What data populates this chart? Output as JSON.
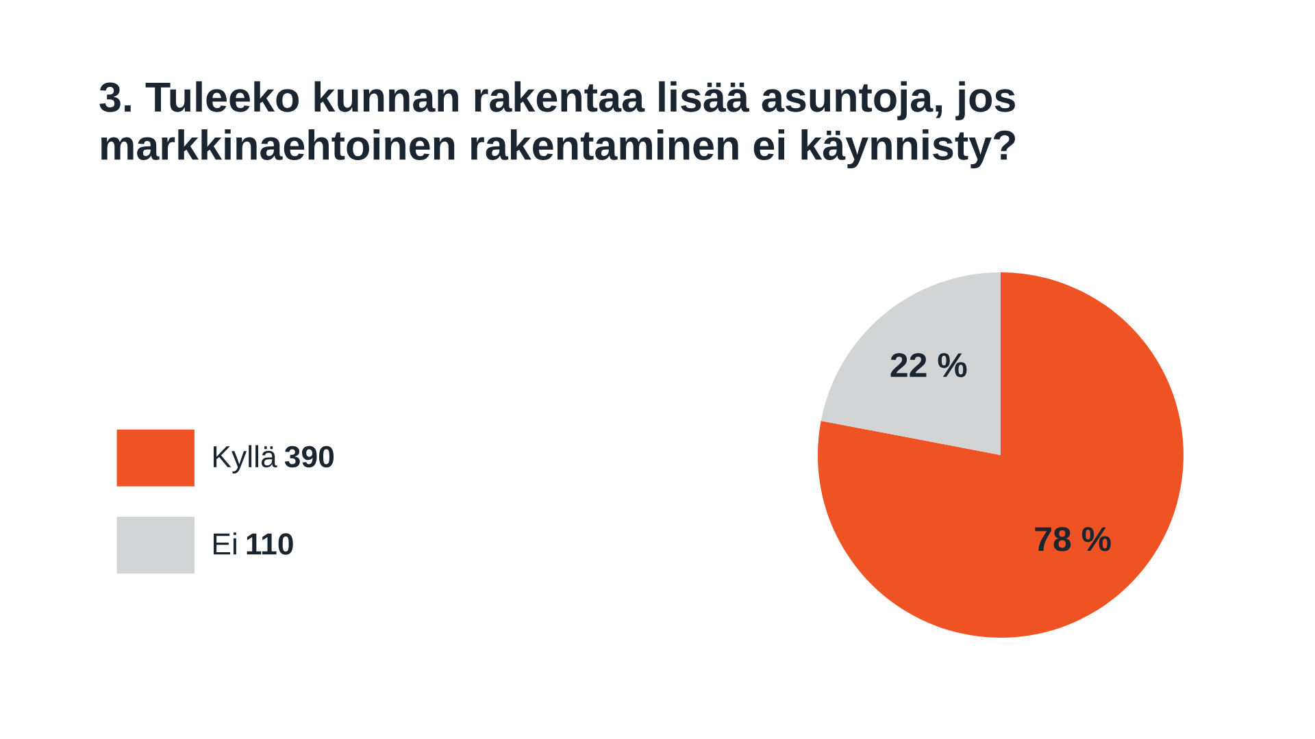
{
  "chart_data": {
    "type": "pie",
    "title": "3. Tuleeko kunnan rakentaa lisää asuntoja, jos markkinaehtoinen rakentaminen ei käynnisty?",
    "categories": [
      "Kyllä",
      "Ei"
    ],
    "values": [
      78,
      22
    ],
    "colors": [
      "#ef5324",
      "#d3d4d6"
    ],
    "value_labels": [
      "78 %",
      "22 %"
    ],
    "annotations": [
      "390",
      "110"
    ],
    "legend": "left"
  }
}
